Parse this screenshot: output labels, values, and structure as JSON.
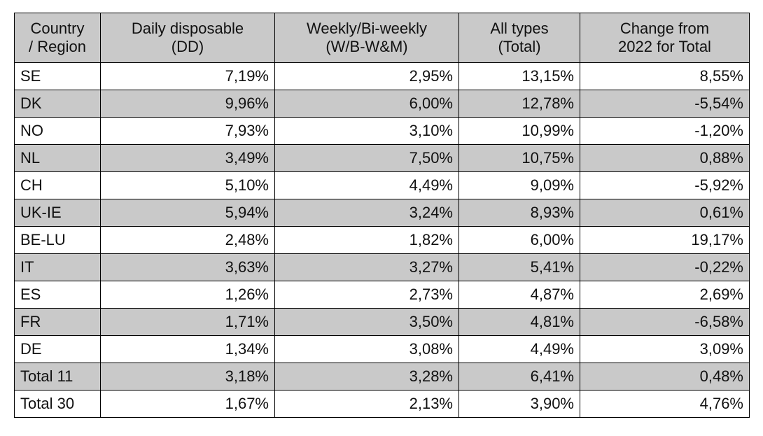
{
  "table": {
    "headers": [
      [
        "Country",
        "/ Region"
      ],
      [
        "Daily disposable",
        "(DD)"
      ],
      [
        "Weekly/Bi-weekly",
        "(W/B-W&M)"
      ],
      [
        "All types",
        "(Total)"
      ],
      [
        "Change from",
        "2022 for Total"
      ]
    ],
    "rows": [
      [
        "SE",
        "7,19%",
        "2,95%",
        "13,15%",
        "8,55%"
      ],
      [
        "DK",
        "9,96%",
        "6,00%",
        "12,78%",
        "-5,54%"
      ],
      [
        "NO",
        "7,93%",
        "3,10%",
        "10,99%",
        "-1,20%"
      ],
      [
        "NL",
        "3,49%",
        "7,50%",
        "10,75%",
        "0,88%"
      ],
      [
        "CH",
        "5,10%",
        "4,49%",
        "9,09%",
        "-5,92%"
      ],
      [
        "UK-IE",
        "5,94%",
        "3,24%",
        "8,93%",
        "0,61%"
      ],
      [
        "BE-LU",
        "2,48%",
        "1,82%",
        "6,00%",
        "19,17%"
      ],
      [
        "IT",
        "3,63%",
        "3,27%",
        "5,41%",
        "-0,22%"
      ],
      [
        "ES",
        "1,26%",
        "2,73%",
        "4,87%",
        "2,69%"
      ],
      [
        "FR",
        "1,71%",
        "3,50%",
        "4,81%",
        "-6,58%"
      ],
      [
        "DE",
        "1,34%",
        "3,08%",
        "4,49%",
        "3,09%"
      ],
      [
        "Total 11",
        "3,18%",
        "3,28%",
        "6,41%",
        "0,48%"
      ],
      [
        "Total 30",
        "1,67%",
        "2,13%",
        "3,90%",
        "4,76%"
      ]
    ]
  }
}
